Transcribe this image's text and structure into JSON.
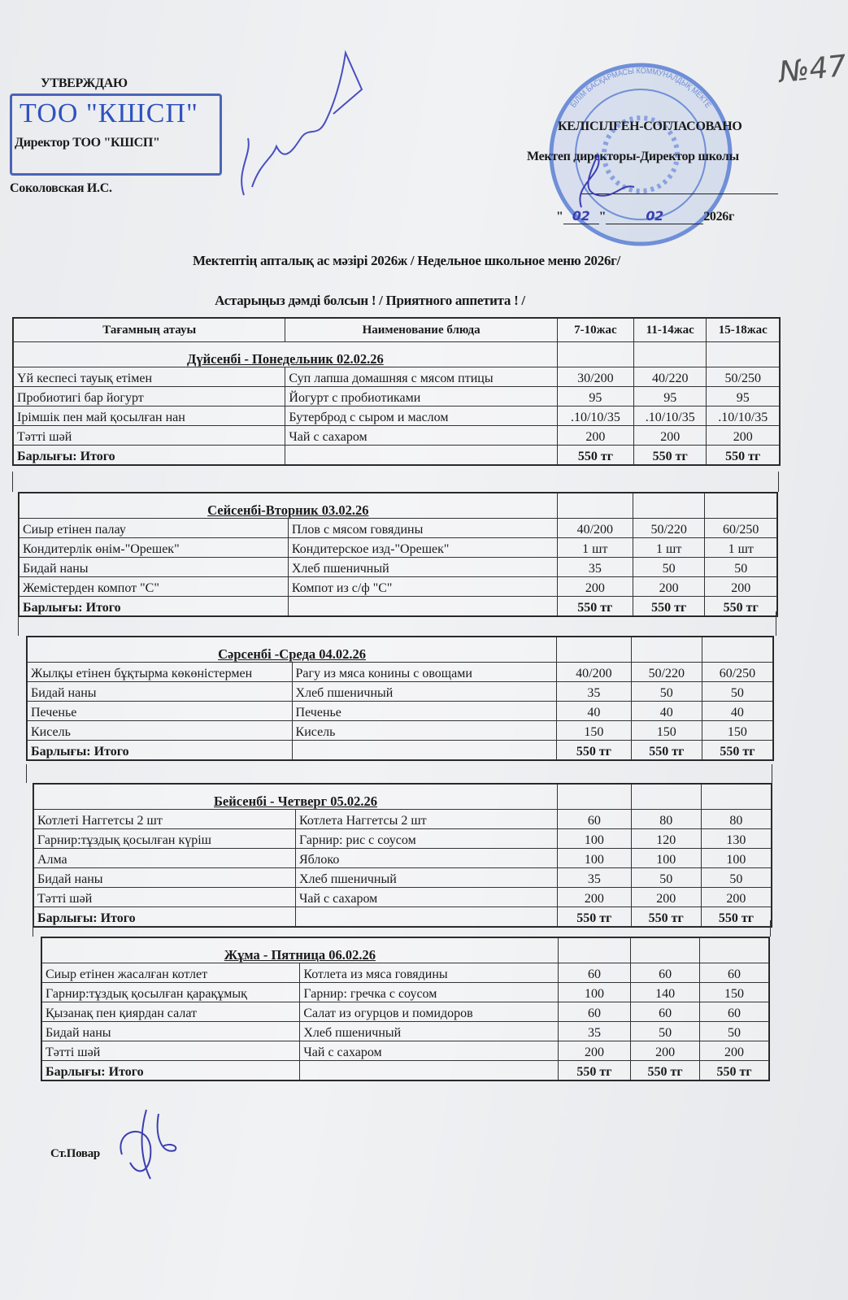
{
  "header_left": {
    "approve": "УТВЕРЖДАЮ",
    "stamp_text": "ТОО \"КШСП\"",
    "position": "Директор ТОО \"КШСП\"",
    "name": "Соколовская И.С."
  },
  "header_right": {
    "agreed": "КЕЛІСІЛГЕН-СОГЛАСОВАНО",
    "position": "Мектеп директоры-Директор школы",
    "date_prefix": "\"",
    "date_day": "02",
    "date_mid": "\"",
    "date_month": "02",
    "date_year": "2026г",
    "stamp_text": "БІЛІМ БАСҚАРМАСЫ КОММУНАЛДЫҚ МЕКТЕБІ"
  },
  "doc_number": "№47",
  "title": "Мектептің апталық ас мәзірі  2026ж / Недельное школьное меню   2026г/",
  "subtitle": "Астарыңыз дәмді болсын !    /   Приятного аппетита ! /",
  "columns": [
    "Тағамның атауы",
    "Наименование блюда",
    "7-10жас",
    "11-14жас",
    "15-18жас"
  ],
  "days": [
    {
      "title": "Дүйсенбі - Понедельник    02.02.26",
      "items": [
        [
          "Үй кеспесі тауық етімен",
          "Суп лапша домашняя с мясом птицы",
          "30/200",
          "40/220",
          "50/250"
        ],
        [
          "Пробиотигі бар йогурт",
          "Йогурт с пробиотиками",
          "95",
          "95",
          "95"
        ],
        [
          "Ірімшік пен май қосылған нан",
          "Бутерброд с сыром и маслом",
          ".10/10/35",
          ".10/10/35",
          ".10/10/35"
        ],
        [
          "Тәтті шәй",
          "Чай с сахаром",
          "200",
          "200",
          "200"
        ]
      ],
      "total": [
        "Барлығы: Итого",
        "",
        "550 тг",
        "550 тг",
        "550 тг"
      ]
    },
    {
      "title": "Сейсенбі-Вторник    03.02.26",
      "items": [
        [
          "Сиыр етінен палау",
          "Плов с мясом говядины",
          "40/200",
          "50/220",
          "60/250"
        ],
        [
          "Кондитерлік өнім-\"Орешек\"",
          "Кондитерское изд-\"Орешек\"",
          "1 шт",
          "1 шт",
          "1 шт"
        ],
        [
          "Бидай наны",
          "Хлеб пшеничный",
          "35",
          "50",
          "50"
        ],
        [
          "Жемістерден компот \"С\"",
          "Компот из с/ф \"С\"",
          "200",
          "200",
          "200"
        ]
      ],
      "total": [
        "Барлығы: Итого",
        "",
        "550 тг",
        "550 тг",
        "550 тг"
      ]
    },
    {
      "title": "Сәрсенбі -Среда    04.02.26",
      "items": [
        [
          "Жылқы етінен бұқтырма көкөністермен",
          "Рагу из мяса конины с овощами",
          "40/200",
          "50/220",
          "60/250"
        ],
        [
          "Бидай наны",
          "Хлеб пшеничный",
          "35",
          "50",
          "50"
        ],
        [
          "Печенье",
          "Печенье",
          "40",
          "40",
          "40"
        ],
        [
          "Кисель",
          "Кисель",
          "150",
          "150",
          "150"
        ]
      ],
      "total": [
        "Барлығы: Итого",
        "",
        "550 тг",
        "550 тг",
        "550 тг"
      ]
    },
    {
      "title": "Бейсенбі - Четверг    05.02.26",
      "items": [
        [
          "Котлеті Наггетсы 2 шт",
          "Котлета Наггетсы 2 шт",
          "60",
          "80",
          "80"
        ],
        [
          "Гарнир:тұздық қосылған  күріш",
          "Гарнир: рис с соусом",
          "100",
          "120",
          "130"
        ],
        [
          "Алма",
          "Яблоко",
          "100",
          "100",
          "100"
        ],
        [
          "Бидай наны",
          "Хлеб пшеничный",
          "35",
          "50",
          "50"
        ],
        [
          "Тәтті шәй",
          "Чай с сахаром",
          "200",
          "200",
          "200"
        ]
      ],
      "total": [
        "Барлығы: Итого",
        "",
        "550 тг",
        "550 тг",
        "550 тг"
      ]
    },
    {
      "title": "Жұма - Пятница    06.02.26",
      "items": [
        [
          "Сиыр етінен жасалған котлет",
          "Котлета из мяса говядины",
          "60",
          "60",
          "60"
        ],
        [
          "Гарнир:тұздық қосылған қарақұмық",
          "Гарнир: гречка с соусом",
          "100",
          "140",
          "150"
        ],
        [
          "Қызанақ пен қиярдан салат",
          "Салат из огурцов и помидоров",
          "60",
          "60",
          "60"
        ],
        [
          "Бидай наны",
          "Хлеб пшеничный",
          "35",
          "50",
          "50"
        ],
        [
          "Тәтті шәй",
          "Чай с сахаром",
          "200",
          "200",
          "200"
        ]
      ],
      "total": [
        "Барлығы: Итого",
        "",
        "550 тг",
        "550 тг",
        "550 тг"
      ]
    }
  ],
  "footer": {
    "cook": "Ст.Повар"
  },
  "colors": {
    "ink_blue": "#3a55b0",
    "stamp_blue": "#6f8fd8",
    "paper": "#eceef0"
  }
}
